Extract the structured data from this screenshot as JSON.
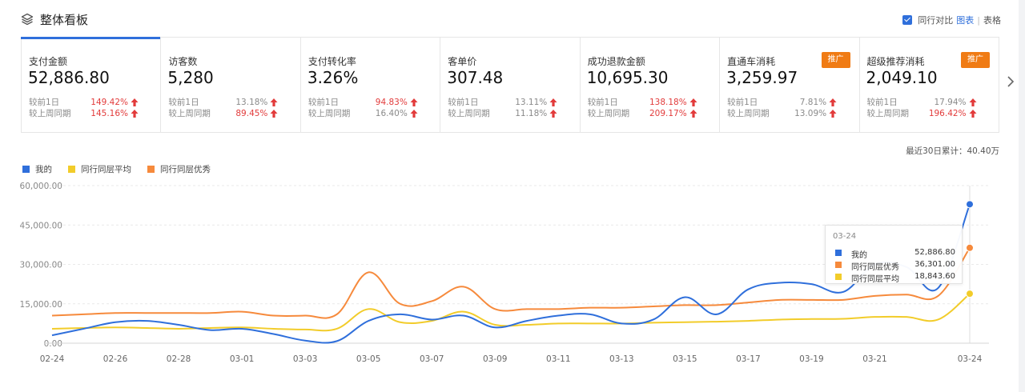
{
  "header": {
    "title": "整体看板",
    "compare_label": "同行对比",
    "view_chart": "图表",
    "separator": "|",
    "view_table": "表格"
  },
  "colors": {
    "accent": "#2f6fdb",
    "mine": "#2f6fdb",
    "peer_avg": "#f2cc2a",
    "peer_best": "#f68a3c",
    "up": "#e23b3b",
    "badge": "#f07b14"
  },
  "metrics": [
    {
      "label": "支付金额",
      "value": "52,886.80",
      "row1_label": "较前1日",
      "row1_value": "149.42%",
      "row1_color": "red",
      "row2_label": "较上周同期",
      "row2_value": "145.16%",
      "row2_color": "red",
      "badge": ""
    },
    {
      "label": "访客数",
      "value": "5,280",
      "row1_label": "较前1日",
      "row1_value": "13.18%",
      "row1_color": "gray",
      "row2_label": "较上周同期",
      "row2_value": "89.45%",
      "row2_color": "red",
      "badge": ""
    },
    {
      "label": "支付转化率",
      "value": "3.26%",
      "row1_label": "较前1日",
      "row1_value": "94.83%",
      "row1_color": "red",
      "row2_label": "较上周同期",
      "row2_value": "16.40%",
      "row2_color": "gray",
      "badge": ""
    },
    {
      "label": "客单价",
      "value": "307.48",
      "row1_label": "较前1日",
      "row1_value": "13.11%",
      "row1_color": "gray",
      "row2_label": "较上周同期",
      "row2_value": "11.18%",
      "row2_color": "gray",
      "badge": ""
    },
    {
      "label": "成功退款金额",
      "value": "10,695.30",
      "row1_label": "较前1日",
      "row1_value": "138.18%",
      "row1_color": "red",
      "row2_label": "较上周同期",
      "row2_value": "209.17%",
      "row2_color": "red",
      "badge": ""
    },
    {
      "label": "直通车消耗",
      "value": "3,259.97",
      "row1_label": "较前1日",
      "row1_value": "7.81%",
      "row1_color": "gray",
      "row2_label": "较上周同期",
      "row2_value": "13.09%",
      "row2_color": "gray",
      "badge": "推广"
    },
    {
      "label": "超级推荐消耗",
      "value": "2,049.10",
      "row1_label": "较前1日",
      "row1_value": "17.94%",
      "row1_color": "gray",
      "row2_label": "较上周同期",
      "row2_value": "196.42%",
      "row2_color": "red",
      "badge": "推广"
    }
  ],
  "cumulative": "最近30日累计：40.40万",
  "tooltip": {
    "date": "03-24",
    "rows": [
      {
        "name": "我的",
        "value": "52,886.80",
        "color": "#2f6fdb"
      },
      {
        "name": "同行同层优秀",
        "value": "36,301.00",
        "color": "#f68a3c"
      },
      {
        "name": "同行同层平均",
        "value": "18,843.60",
        "color": "#f2cc2a"
      }
    ]
  },
  "chart_data": {
    "type": "line",
    "ylim": [
      0,
      60000
    ],
    "yticks": [
      "0.00",
      "15,000.00",
      "30,000.00",
      "45,000.00",
      "60,000.00"
    ],
    "grid": true,
    "legend_position": "top-left",
    "x": [
      "02-24",
      "02-25",
      "02-26",
      "02-27",
      "02-28",
      "02-29",
      "03-01",
      "03-02",
      "03-03",
      "03-04",
      "03-05",
      "03-06",
      "03-07",
      "03-08",
      "03-09",
      "03-10",
      "03-11",
      "03-12",
      "03-13",
      "03-14",
      "03-15",
      "03-16",
      "03-17",
      "03-18",
      "03-19",
      "03-20",
      "03-21",
      "03-22",
      "03-23",
      "03-24"
    ],
    "x_tick_labels": [
      "02-24",
      "02-26",
      "02-28",
      "03-01",
      "03-03",
      "03-05",
      "03-07",
      "03-09",
      "03-11",
      "03-13",
      "03-15",
      "03-17",
      "03-19",
      "03-21",
      "03-24"
    ],
    "series": [
      {
        "name": "我的",
        "color": "#2f6fdb",
        "values": [
          3000,
          5500,
          8000,
          8500,
          7000,
          5000,
          5500,
          3500,
          1000,
          800,
          8500,
          11000,
          9000,
          10500,
          6000,
          8500,
          10500,
          11000,
          7500,
          9000,
          17500,
          11000,
          20500,
          23000,
          22500,
          19500,
          30000,
          29000,
          21000,
          52886.8
        ]
      },
      {
        "name": "同行同层平均",
        "color": "#f2cc2a",
        "values": [
          5500,
          5800,
          6000,
          5800,
          5500,
          5800,
          6000,
          5500,
          5200,
          5500,
          13000,
          8000,
          8500,
          12000,
          7000,
          7000,
          7500,
          7500,
          7500,
          7800,
          8000,
          8200,
          8500,
          9000,
          9200,
          9300,
          10000,
          10000,
          9000,
          18843.6
        ]
      },
      {
        "name": "同行同层优秀",
        "color": "#f68a3c",
        "values": [
          10500,
          11000,
          11500,
          11500,
          11500,
          11500,
          12000,
          10500,
          10500,
          11000,
          27000,
          15000,
          16000,
          21500,
          13000,
          13000,
          13000,
          13500,
          13500,
          14000,
          14500,
          14500,
          15500,
          16500,
          16500,
          16500,
          18000,
          18500,
          18000,
          36301
        ]
      }
    ]
  }
}
